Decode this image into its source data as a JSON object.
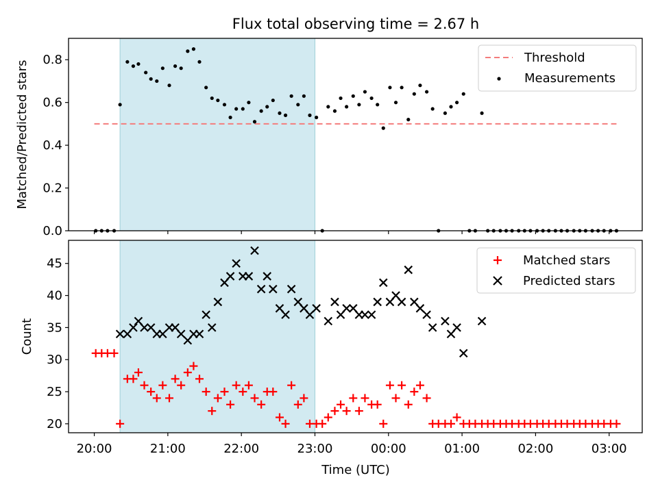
{
  "chart_data": [
    {
      "type": "scatter",
      "title": "Flux total observing time = 2.67 h",
      "xlabel": "",
      "ylabel": "Matched/Predicted stars",
      "x_unit": "hours since 20:00 UTC",
      "xlim": [
        -0.35,
        7.45
      ],
      "ylim": [
        0,
        0.9
      ],
      "yticks": [
        0.0,
        0.2,
        0.4,
        0.6,
        0.8
      ],
      "ytick_labels": [
        "0.0",
        "0.2",
        "0.4",
        "0.6",
        "0.8"
      ],
      "grid": false,
      "legend": "upper right",
      "shaded_interval": {
        "x": [
          0.35,
          3.0
        ],
        "color": "#add8e6"
      },
      "threshold": {
        "name": "Threshold",
        "y": 0.5,
        "x": [
          0.0,
          7.1
        ],
        "color": "#f47c7c",
        "style": "dashed"
      },
      "series": [
        {
          "name": "Measurements",
          "marker": "dot",
          "color": "#000000",
          "points": [
            [
              0.02,
              0.0
            ],
            [
              0.1,
              0.0
            ],
            [
              0.18,
              0.0
            ],
            [
              0.27,
              0.0
            ],
            [
              0.35,
              0.59
            ],
            [
              0.45,
              0.79
            ],
            [
              0.53,
              0.77
            ],
            [
              0.6,
              0.78
            ],
            [
              0.7,
              0.74
            ],
            [
              0.77,
              0.71
            ],
            [
              0.85,
              0.7
            ],
            [
              0.93,
              0.76
            ],
            [
              1.02,
              0.68
            ],
            [
              1.1,
              0.77
            ],
            [
              1.18,
              0.76
            ],
            [
              1.27,
              0.84
            ],
            [
              1.35,
              0.85
            ],
            [
              1.43,
              0.79
            ],
            [
              1.52,
              0.67
            ],
            [
              1.6,
              0.62
            ],
            [
              1.68,
              0.61
            ],
            [
              1.77,
              0.59
            ],
            [
              1.85,
              0.53
            ],
            [
              1.93,
              0.57
            ],
            [
              2.02,
              0.57
            ],
            [
              2.1,
              0.6
            ],
            [
              2.18,
              0.51
            ],
            [
              2.27,
              0.56
            ],
            [
              2.35,
              0.58
            ],
            [
              2.43,
              0.61
            ],
            [
              2.52,
              0.55
            ],
            [
              2.6,
              0.54
            ],
            [
              2.68,
              0.63
            ],
            [
              2.77,
              0.59
            ],
            [
              2.85,
              0.63
            ],
            [
              2.93,
              0.54
            ],
            [
              3.02,
              0.53
            ],
            [
              3.1,
              0.0
            ],
            [
              3.18,
              0.58
            ],
            [
              3.27,
              0.56
            ],
            [
              3.35,
              0.62
            ],
            [
              3.43,
              0.58
            ],
            [
              3.52,
              0.63
            ],
            [
              3.6,
              0.59
            ],
            [
              3.68,
              0.65
            ],
            [
              3.77,
              0.62
            ],
            [
              3.85,
              0.59
            ],
            [
              3.93,
              0.48
            ],
            [
              4.02,
              0.67
            ],
            [
              4.1,
              0.6
            ],
            [
              4.18,
              0.67
            ],
            [
              4.27,
              0.52
            ],
            [
              4.35,
              0.64
            ],
            [
              4.43,
              0.68
            ],
            [
              4.52,
              0.65
            ],
            [
              4.6,
              0.57
            ],
            [
              4.68,
              0.0
            ],
            [
              4.77,
              0.55
            ],
            [
              4.85,
              0.58
            ],
            [
              4.93,
              0.6
            ],
            [
              5.02,
              0.64
            ],
            [
              5.1,
              0.0
            ],
            [
              5.18,
              0.0
            ],
            [
              5.27,
              0.55
            ],
            [
              5.35,
              0.0
            ],
            [
              5.43,
              0.0
            ],
            [
              5.52,
              0.0
            ],
            [
              5.6,
              0.0
            ],
            [
              5.68,
              0.0
            ],
            [
              5.77,
              0.0
            ],
            [
              5.85,
              0.0
            ],
            [
              5.93,
              0.0
            ],
            [
              6.02,
              0.0
            ],
            [
              6.1,
              0.0
            ],
            [
              6.18,
              0.0
            ],
            [
              6.27,
              0.0
            ],
            [
              6.35,
              0.0
            ],
            [
              6.43,
              0.0
            ],
            [
              6.52,
              0.0
            ],
            [
              6.6,
              0.0
            ],
            [
              6.68,
              0.0
            ],
            [
              6.77,
              0.0
            ],
            [
              6.85,
              0.0
            ],
            [
              6.93,
              0.0
            ],
            [
              7.02,
              0.0
            ],
            [
              7.1,
              0.0
            ]
          ]
        }
      ]
    },
    {
      "type": "scatter",
      "title": "",
      "xlabel": "Time (UTC)",
      "ylabel": "Count",
      "x_unit": "hours since 20:00 UTC",
      "xlim": [
        -0.35,
        7.45
      ],
      "ylim": [
        18.6,
        48.6
      ],
      "xticks": [
        0,
        1,
        2,
        3,
        4,
        5,
        6,
        7
      ],
      "xtick_labels": [
        "20:00",
        "21:00",
        "22:00",
        "23:00",
        "00:00",
        "01:00",
        "02:00",
        "03:00"
      ],
      "yticks": [
        20,
        25,
        30,
        35,
        40,
        45
      ],
      "ytick_labels": [
        "20",
        "25",
        "30",
        "35",
        "40",
        "45"
      ],
      "grid": false,
      "legend": "upper right",
      "shaded_interval": {
        "x": [
          0.35,
          3.0
        ],
        "color": "#add8e6"
      },
      "series": [
        {
          "name": "Matched stars",
          "marker": "plus",
          "color": "#ff0000",
          "points": [
            [
              0.02,
              31
            ],
            [
              0.1,
              31
            ],
            [
              0.18,
              31
            ],
            [
              0.27,
              31
            ],
            [
              0.35,
              20
            ],
            [
              0.45,
              27
            ],
            [
              0.53,
              27
            ],
            [
              0.6,
              28
            ],
            [
              0.68,
              26
            ],
            [
              0.77,
              25
            ],
            [
              0.85,
              24
            ],
            [
              0.93,
              26
            ],
            [
              1.02,
              24
            ],
            [
              1.1,
              27
            ],
            [
              1.18,
              26
            ],
            [
              1.27,
              28
            ],
            [
              1.35,
              29
            ],
            [
              1.43,
              27
            ],
            [
              1.52,
              25
            ],
            [
              1.6,
              22
            ],
            [
              1.68,
              24
            ],
            [
              1.77,
              25
            ],
            [
              1.85,
              23
            ],
            [
              1.93,
              26
            ],
            [
              2.02,
              25
            ],
            [
              2.1,
              26
            ],
            [
              2.18,
              24
            ],
            [
              2.27,
              23
            ],
            [
              2.35,
              25
            ],
            [
              2.43,
              25
            ],
            [
              2.52,
              21
            ],
            [
              2.6,
              20
            ],
            [
              2.68,
              26
            ],
            [
              2.77,
              23
            ],
            [
              2.85,
              24
            ],
            [
              2.93,
              20
            ],
            [
              3.02,
              20
            ],
            [
              3.1,
              20
            ],
            [
              3.18,
              21
            ],
            [
              3.27,
              22
            ],
            [
              3.35,
              23
            ],
            [
              3.43,
              22
            ],
            [
              3.52,
              24
            ],
            [
              3.6,
              22
            ],
            [
              3.68,
              24
            ],
            [
              3.77,
              23
            ],
            [
              3.85,
              23
            ],
            [
              3.93,
              20
            ],
            [
              4.02,
              26
            ],
            [
              4.1,
              24
            ],
            [
              4.18,
              26
            ],
            [
              4.27,
              23
            ],
            [
              4.35,
              25
            ],
            [
              4.43,
              26
            ],
            [
              4.52,
              24
            ],
            [
              4.6,
              20
            ],
            [
              4.68,
              20
            ],
            [
              4.77,
              20
            ],
            [
              4.85,
              20
            ],
            [
              4.93,
              21
            ],
            [
              5.02,
              20
            ],
            [
              5.1,
              20
            ],
            [
              5.18,
              20
            ],
            [
              5.27,
              20
            ],
            [
              5.35,
              20
            ],
            [
              5.43,
              20
            ],
            [
              5.52,
              20
            ],
            [
              5.6,
              20
            ],
            [
              5.68,
              20
            ],
            [
              5.77,
              20
            ],
            [
              5.85,
              20
            ],
            [
              5.93,
              20
            ],
            [
              6.02,
              20
            ],
            [
              6.1,
              20
            ],
            [
              6.18,
              20
            ],
            [
              6.27,
              20
            ],
            [
              6.35,
              20
            ],
            [
              6.43,
              20
            ],
            [
              6.52,
              20
            ],
            [
              6.6,
              20
            ],
            [
              6.68,
              20
            ],
            [
              6.77,
              20
            ],
            [
              6.85,
              20
            ],
            [
              6.93,
              20
            ],
            [
              7.02,
              20
            ],
            [
              7.1,
              20
            ]
          ]
        },
        {
          "name": "Predicted stars",
          "marker": "x",
          "color": "#000000",
          "points": [
            [
              0.35,
              34
            ],
            [
              0.45,
              34
            ],
            [
              0.53,
              35
            ],
            [
              0.6,
              36
            ],
            [
              0.68,
              35
            ],
            [
              0.77,
              35
            ],
            [
              0.85,
              34
            ],
            [
              0.93,
              34
            ],
            [
              1.02,
              35
            ],
            [
              1.1,
              35
            ],
            [
              1.18,
              34
            ],
            [
              1.27,
              33
            ],
            [
              1.35,
              34
            ],
            [
              1.43,
              34
            ],
            [
              1.52,
              37
            ],
            [
              1.6,
              35
            ],
            [
              1.68,
              39
            ],
            [
              1.77,
              42
            ],
            [
              1.85,
              43
            ],
            [
              1.93,
              45
            ],
            [
              2.02,
              43
            ],
            [
              2.1,
              43
            ],
            [
              2.18,
              47
            ],
            [
              2.27,
              41
            ],
            [
              2.35,
              43
            ],
            [
              2.43,
              41
            ],
            [
              2.52,
              38
            ],
            [
              2.6,
              37
            ],
            [
              2.68,
              41
            ],
            [
              2.77,
              39
            ],
            [
              2.85,
              38
            ],
            [
              2.93,
              37
            ],
            [
              3.02,
              38
            ],
            [
              3.18,
              36
            ],
            [
              3.27,
              39
            ],
            [
              3.35,
              37
            ],
            [
              3.43,
              38
            ],
            [
              3.52,
              38
            ],
            [
              3.6,
              37
            ],
            [
              3.68,
              37
            ],
            [
              3.77,
              37
            ],
            [
              3.85,
              39
            ],
            [
              3.93,
              42
            ],
            [
              4.02,
              39
            ],
            [
              4.1,
              40
            ],
            [
              4.18,
              39
            ],
            [
              4.27,
              44
            ],
            [
              4.35,
              39
            ],
            [
              4.43,
              38
            ],
            [
              4.52,
              37
            ],
            [
              4.6,
              35
            ],
            [
              4.77,
              36
            ],
            [
              4.85,
              34
            ],
            [
              4.93,
              35
            ],
            [
              5.02,
              31
            ],
            [
              5.27,
              36
            ]
          ]
        }
      ]
    }
  ]
}
